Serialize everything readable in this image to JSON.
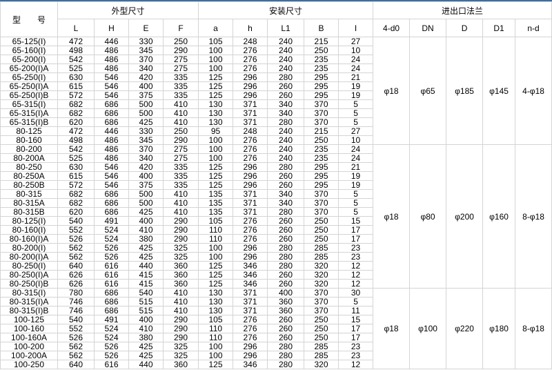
{
  "header": {
    "model": "型　　号",
    "group_outer": "外型尺寸",
    "group_install": "安装尺寸",
    "group_flange": "进出口法兰",
    "cols": [
      "L",
      "H",
      "E",
      "F",
      "a",
      "h",
      "L1",
      "B",
      "I",
      "4-d0",
      "DN",
      "D",
      "D1",
      "n-d"
    ]
  },
  "groups": [
    {
      "flange": [
        "φ18",
        "φ65",
        "φ185",
        "φ145",
        "4-φ18"
      ],
      "rows": [
        [
          "65-125(I)",
          "472",
          "446",
          "330",
          "250",
          "105",
          "248",
          "240",
          "215",
          "27"
        ],
        [
          "65-160(I)",
          "498",
          "486",
          "345",
          "290",
          "100",
          "276",
          "240",
          "250",
          "10"
        ],
        [
          "65-200(I)",
          "542",
          "486",
          "370",
          "275",
          "100",
          "276",
          "240",
          "235",
          "24"
        ],
        [
          "65-200(I)A",
          "525",
          "486",
          "340",
          "275",
          "100",
          "276",
          "240",
          "235",
          "24"
        ],
        [
          "65-250(I)",
          "630",
          "546",
          "420",
          "335",
          "125",
          "296",
          "280",
          "295",
          "21"
        ],
        [
          "65-250(I)A",
          "615",
          "546",
          "400",
          "335",
          "125",
          "296",
          "260",
          "295",
          "19"
        ],
        [
          "65-250(I)B",
          "572",
          "546",
          "375",
          "335",
          "125",
          "296",
          "260",
          "295",
          "19"
        ],
        [
          "65-315(I)",
          "682",
          "686",
          "500",
          "410",
          "130",
          "371",
          "340",
          "370",
          "5"
        ],
        [
          "65-315(I)A",
          "682",
          "686",
          "500",
          "410",
          "130",
          "371",
          "340",
          "370",
          "5"
        ],
        [
          "65-315(I)B",
          "620",
          "686",
          "425",
          "410",
          "130",
          "371",
          "280",
          "370",
          "5"
        ],
        [
          "80-125",
          "472",
          "446",
          "330",
          "250",
          "95",
          "248",
          "240",
          "215",
          "27"
        ],
        [
          "80-160",
          "498",
          "486",
          "345",
          "290",
          "100",
          "276",
          "240",
          "250",
          "10"
        ]
      ]
    },
    {
      "flange": [
        "φ18",
        "φ80",
        "φ200",
        "φ160",
        "8-φ18"
      ],
      "rows": [
        [
          "80-200",
          "542",
          "486",
          "370",
          "275",
          "100",
          "276",
          "240",
          "235",
          "24"
        ],
        [
          "80-200A",
          "525",
          "486",
          "340",
          "275",
          "100",
          "276",
          "240",
          "235",
          "24"
        ],
        [
          "80-250",
          "630",
          "546",
          "420",
          "335",
          "125",
          "296",
          "280",
          "295",
          "21"
        ],
        [
          "80-250A",
          "615",
          "546",
          "400",
          "335",
          "125",
          "296",
          "260",
          "295",
          "19"
        ],
        [
          "80-250B",
          "572",
          "546",
          "375",
          "335",
          "125",
          "296",
          "260",
          "295",
          "19"
        ],
        [
          "80-315",
          "682",
          "686",
          "500",
          "410",
          "135",
          "371",
          "340",
          "370",
          "5"
        ],
        [
          "80-315A",
          "682",
          "686",
          "500",
          "410",
          "135",
          "371",
          "340",
          "370",
          "5"
        ],
        [
          "80-315B",
          "620",
          "686",
          "425",
          "410",
          "135",
          "371",
          "280",
          "370",
          "5"
        ],
        [
          "80-125(I)",
          "540",
          "491",
          "400",
          "290",
          "105",
          "276",
          "260",
          "250",
          "15"
        ],
        [
          "80-160(I)",
          "552",
          "524",
          "410",
          "290",
          "110",
          "276",
          "260",
          "250",
          "17"
        ],
        [
          "80-160(I)A",
          "526",
          "524",
          "380",
          "290",
          "110",
          "276",
          "260",
          "250",
          "17"
        ],
        [
          "80-200(I)",
          "562",
          "526",
          "425",
          "325",
          "100",
          "296",
          "280",
          "285",
          "23"
        ],
        [
          "80-200(I)A",
          "562",
          "526",
          "425",
          "325",
          "100",
          "296",
          "280",
          "285",
          "23"
        ],
        [
          "80-250(I)",
          "640",
          "616",
          "440",
          "360",
          "125",
          "346",
          "280",
          "320",
          "12"
        ],
        [
          "80-250(I)A",
          "626",
          "616",
          "415",
          "360",
          "125",
          "346",
          "260",
          "320",
          "12"
        ],
        [
          "80-250(I)B",
          "626",
          "616",
          "415",
          "360",
          "125",
          "346",
          "260",
          "320",
          "12"
        ]
      ]
    },
    {
      "flange": [
        "φ18",
        "φ100",
        "φ220",
        "φ180",
        "8-φ18"
      ],
      "rows": [
        [
          "80-315(I)",
          "780",
          "686",
          "540",
          "410",
          "130",
          "371",
          "400",
          "370",
          "30"
        ],
        [
          "80-315(I)A",
          "746",
          "686",
          "515",
          "410",
          "130",
          "371",
          "360",
          "370",
          "5"
        ],
        [
          "80-315(I)B",
          "746",
          "686",
          "515",
          "410",
          "130",
          "371",
          "360",
          "370",
          "11"
        ],
        [
          "100-125",
          "540",
          "491",
          "400",
          "290",
          "105",
          "276",
          "260",
          "250",
          "15"
        ],
        [
          "100-160",
          "552",
          "524",
          "410",
          "290",
          "110",
          "276",
          "260",
          "250",
          "17"
        ],
        [
          "100-160A",
          "526",
          "524",
          "380",
          "290",
          "110",
          "276",
          "260",
          "250",
          "17"
        ],
        [
          "100-200",
          "562",
          "526",
          "425",
          "325",
          "100",
          "296",
          "280",
          "285",
          "23"
        ],
        [
          "100-200A",
          "562",
          "526",
          "425",
          "325",
          "100",
          "296",
          "280",
          "285",
          "23"
        ],
        [
          "100-250",
          "640",
          "616",
          "440",
          "360",
          "125",
          "346",
          "280",
          "320",
          "12"
        ]
      ]
    }
  ]
}
